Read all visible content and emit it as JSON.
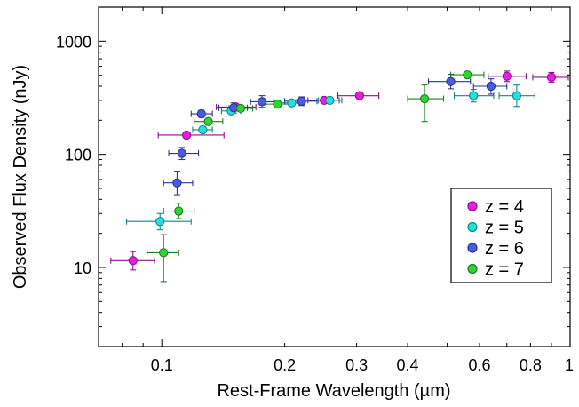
{
  "chart_data": {
    "type": "scatter",
    "title": "",
    "xlabel": "Rest-Frame Wavelength (µm)",
    "ylabel": "Observed Flux Density (nJy)",
    "x_scale": "log",
    "y_scale": "log",
    "xlim": [
      0.07,
      1.0
    ],
    "ylim": [
      2,
      2000
    ],
    "x_ticks": [
      {
        "v": 0.1,
        "label": "0.1"
      },
      {
        "v": 0.2,
        "label": "0.2"
      },
      {
        "v": 0.3,
        "label": "0.3"
      },
      {
        "v": 0.4,
        "label": "0.4"
      },
      {
        "v": 0.6,
        "label": "0.6"
      },
      {
        "v": 0.8,
        "label": "0.8"
      },
      {
        "v": 1.0,
        "label": "1"
      }
    ],
    "y_ticks": [
      {
        "v": 10,
        "label": "10"
      },
      {
        "v": 100,
        "label": "100"
      },
      {
        "v": 1000,
        "label": "1000"
      }
    ],
    "grid": false,
    "legend_position": "right",
    "series": [
      {
        "name": "z = 4",
        "color": "#e81ee8",
        "points": [
          {
            "x": 0.085,
            "y": 11.5,
            "xlo": 0.075,
            "xhi": 0.096,
            "ylo": 9.5,
            "yhi": 13.8
          },
          {
            "x": 0.115,
            "y": 148,
            "xlo": 0.098,
            "xhi": 0.142,
            "ylo": 141,
            "yhi": 155
          },
          {
            "x": 0.152,
            "y": 262,
            "xlo": 0.136,
            "xhi": 0.17,
            "ylo": 252,
            "yhi": 272
          },
          {
            "x": 0.25,
            "y": 300,
            "xlo": 0.228,
            "xhi": 0.272,
            "ylo": 292,
            "yhi": 308
          },
          {
            "x": 0.305,
            "y": 330,
            "xlo": 0.27,
            "xhi": 0.34,
            "ylo": 318,
            "yhi": 342
          },
          {
            "x": 0.7,
            "y": 490,
            "xlo": 0.63,
            "xhi": 0.78,
            "ylo": 440,
            "yhi": 545
          },
          {
            "x": 0.9,
            "y": 480,
            "xlo": 0.81,
            "xhi": 0.99,
            "ylo": 435,
            "yhi": 530
          }
        ]
      },
      {
        "name": "z = 5",
        "color": "#22e0e0",
        "points": [
          {
            "x": 0.099,
            "y": 25.5,
            "xlo": 0.082,
            "xhi": 0.118,
            "ylo": 21.5,
            "yhi": 30
          },
          {
            "x": 0.126,
            "y": 165,
            "xlo": 0.119,
            "xhi": 0.133,
            "ylo": 155,
            "yhi": 176
          },
          {
            "x": 0.148,
            "y": 242,
            "xlo": 0.14,
            "xhi": 0.156,
            "ylo": 230,
            "yhi": 255
          },
          {
            "x": 0.208,
            "y": 285,
            "xlo": 0.195,
            "xhi": 0.222,
            "ylo": 273,
            "yhi": 298
          },
          {
            "x": 0.258,
            "y": 300,
            "xlo": 0.242,
            "xhi": 0.276,
            "ylo": 290,
            "yhi": 310
          },
          {
            "x": 0.58,
            "y": 330,
            "xlo": 0.52,
            "xhi": 0.65,
            "ylo": 290,
            "yhi": 375
          },
          {
            "x": 0.74,
            "y": 330,
            "xlo": 0.67,
            "xhi": 0.82,
            "ylo": 265,
            "yhi": 410
          }
        ]
      },
      {
        "name": "z = 6",
        "color": "#4a5ae8",
        "points": [
          {
            "x": 0.109,
            "y": 56,
            "xlo": 0.101,
            "xhi": 0.119,
            "ylo": 44,
            "yhi": 71
          },
          {
            "x": 0.112,
            "y": 102,
            "xlo": 0.104,
            "xhi": 0.123,
            "ylo": 90,
            "yhi": 115
          },
          {
            "x": 0.125,
            "y": 228,
            "xlo": 0.118,
            "xhi": 0.133,
            "ylo": 212,
            "yhi": 245
          },
          {
            "x": 0.15,
            "y": 258,
            "xlo": 0.138,
            "xhi": 0.162,
            "ylo": 232,
            "yhi": 285
          },
          {
            "x": 0.176,
            "y": 292,
            "xlo": 0.165,
            "xhi": 0.188,
            "ylo": 260,
            "yhi": 330
          },
          {
            "x": 0.22,
            "y": 295,
            "xlo": 0.2,
            "xhi": 0.24,
            "ylo": 270,
            "yhi": 322
          },
          {
            "x": 0.51,
            "y": 440,
            "xlo": 0.45,
            "xhi": 0.57,
            "ylo": 380,
            "yhi": 510
          },
          {
            "x": 0.64,
            "y": 400,
            "xlo": 0.58,
            "xhi": 0.7,
            "ylo": 340,
            "yhi": 465
          }
        ]
      },
      {
        "name": "z = 7",
        "color": "#30d430",
        "points": [
          {
            "x": 0.101,
            "y": 13.5,
            "xlo": 0.092,
            "xhi": 0.11,
            "ylo": 7.5,
            "yhi": 19.5
          },
          {
            "x": 0.11,
            "y": 31.5,
            "xlo": 0.101,
            "xhi": 0.12,
            "ylo": 27,
            "yhi": 37
          },
          {
            "x": 0.13,
            "y": 195,
            "xlo": 0.12,
            "xhi": 0.141,
            "ylo": 182,
            "yhi": 208
          },
          {
            "x": 0.156,
            "y": 255,
            "xlo": 0.146,
            "xhi": 0.167,
            "ylo": 245,
            "yhi": 265
          },
          {
            "x": 0.192,
            "y": 278,
            "xlo": 0.18,
            "xhi": 0.205,
            "ylo": 268,
            "yhi": 288
          },
          {
            "x": 0.44,
            "y": 310,
            "xlo": 0.4,
            "xhi": 0.49,
            "ylo": 195,
            "yhi": 410
          },
          {
            "x": 0.56,
            "y": 505,
            "xlo": 0.51,
            "xhi": 0.615,
            "ylo": 475,
            "yhi": 535
          }
        ]
      }
    ]
  }
}
